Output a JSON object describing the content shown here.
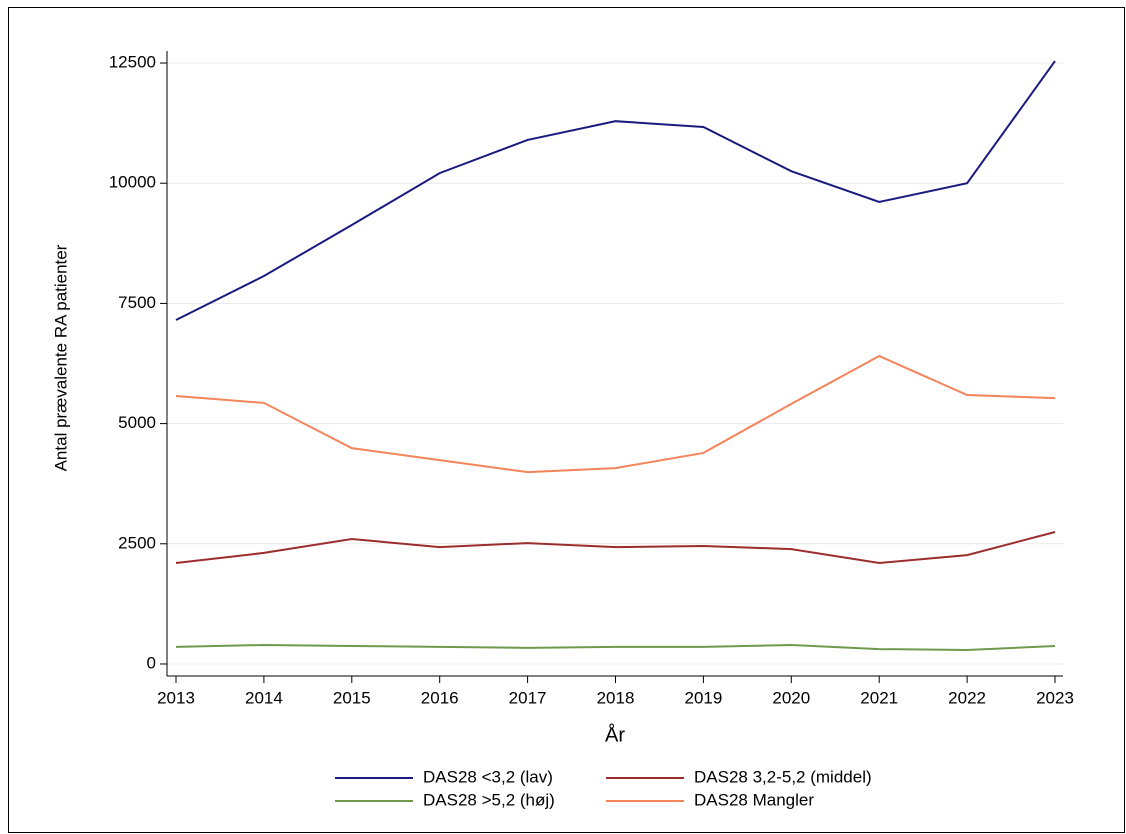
{
  "chart_data": {
    "type": "line",
    "x_label": "År",
    "y_label": "Antal prævalente RA patienter",
    "x": [
      2013,
      2014,
      2015,
      2016,
      2017,
      2018,
      2019,
      2020,
      2021,
      2022,
      2023
    ],
    "xlim": [
      2013,
      2023
    ],
    "xticks": [
      2013,
      2014,
      2015,
      2016,
      2017,
      2018,
      2019,
      2020,
      2021,
      2022,
      2023
    ],
    "ylim": [
      -250,
      12750
    ],
    "yticks": [
      0,
      2500,
      5000,
      7500,
      10000,
      12500
    ],
    "grid": true,
    "legend": "bottom",
    "series": [
      {
        "name": "DAS28 <3,2 (lav)",
        "color": "#1a1a80",
        "values": [
          7155,
          8070,
          9130,
          10210,
          10900,
          11290,
          11170,
          10250,
          9610,
          10000,
          12540
        ]
      },
      {
        "name": "DAS28 3,2-5,2 (middel)",
        "color": "#9b2d2d",
        "values": [
          2100,
          2310,
          2600,
          2430,
          2515,
          2430,
          2455,
          2390,
          2100,
          2265,
          2745
        ]
      },
      {
        "name": "DAS28 >5,2 (høj)",
        "color": "#6f9a4c",
        "values": [
          355,
          395,
          375,
          355,
          335,
          355,
          355,
          395,
          310,
          290,
          375
        ]
      },
      {
        "name": "DAS28 Mangler",
        "color": "#f4845a",
        "values": [
          5575,
          5430,
          4490,
          4240,
          3990,
          4075,
          4390,
          5410,
          6405,
          5595,
          5530
        ]
      }
    ]
  }
}
